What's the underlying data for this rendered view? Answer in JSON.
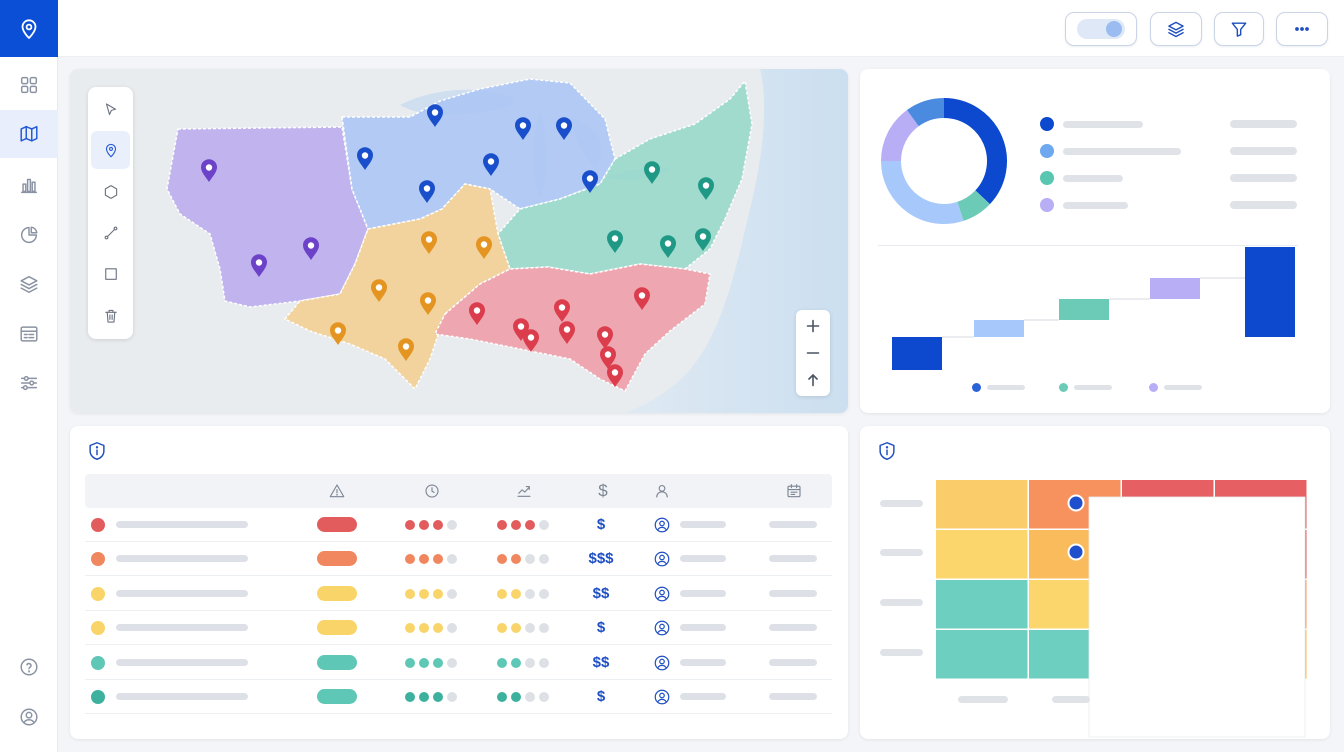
{
  "colors": {
    "brand": "#0a4fd6",
    "purple": "#b5a5ee",
    "blue": "#9dbcf0",
    "teal": "#87d3c2",
    "orange": "#f3cf93",
    "red": "#ee9ea8",
    "navy": "#0c49cf",
    "lightblue": "#a6c8fb",
    "mint": "#6ccbb7",
    "lavender": "#b7aef6"
  },
  "sidebar": {
    "brand_icon": "map-pin-icon",
    "items": [
      {
        "icon": "grid-icon",
        "active": false
      },
      {
        "icon": "map-icon",
        "active": true
      },
      {
        "icon": "bar-chart-icon",
        "active": false
      },
      {
        "icon": "pie-chart-icon",
        "active": false
      },
      {
        "icon": "layers-icon",
        "active": false
      },
      {
        "icon": "table-icon",
        "active": false
      },
      {
        "icon": "sliders-icon",
        "active": false
      }
    ],
    "bottom_items": [
      {
        "icon": "help-icon"
      },
      {
        "icon": "user-icon"
      }
    ]
  },
  "topbar": {
    "buttons": [
      "toggle",
      "layers-icon",
      "filter-icon",
      "more-icon"
    ]
  },
  "map": {
    "tools": [
      "cursor-icon",
      "pin-icon",
      "polygon-icon",
      "line-icon",
      "rectangle-icon",
      "trash-icon"
    ],
    "active_tool": "pin-icon",
    "zoom_controls": [
      "zoom-in-icon",
      "zoom-out-icon",
      "north-arrow-icon"
    ]
  },
  "chart_data": [
    {
      "type": "pie",
      "title": "",
      "donut": true,
      "slices": [
        {
          "value": 37,
          "color": "#0c49cf"
        },
        {
          "value": 8,
          "color": "#6ccbb7"
        },
        {
          "value": 30,
          "color": "#a6c8fb"
        },
        {
          "value": 15,
          "color": "#b7aef6"
        },
        {
          "value": 10,
          "color": "#4a8be0"
        }
      ],
      "legend_colors": [
        "#0c49cf",
        "#6ea8f0",
        "#58c6b0",
        "#b7aef6"
      ]
    },
    {
      "type": "bar",
      "title": "",
      "waterfall": true,
      "values": [
        -33,
        17,
        21,
        21,
        104
      ],
      "colors": [
        "#0c49cf",
        "#a6c8fb",
        "#6ccbb7",
        "#b7aef6",
        "#0c49cf"
      ],
      "ylim": [
        -40,
        105
      ],
      "legend_colors": [
        "#2a63d8",
        "#6ccbb7",
        "#b7aef6"
      ]
    }
  ],
  "table": {
    "header_icons": [
      "warning-icon",
      "clock-icon",
      "trend-icon",
      "dollar-icon",
      "person-icon",
      "calendar-icon"
    ],
    "header_dollar": "$",
    "rows": [
      {
        "color": "#e25c5e",
        "pill": "#e25c5e",
        "level": 3,
        "trend": 3,
        "cost": "$"
      },
      {
        "color": "#f0875e",
        "pill": "#f0875e",
        "level": 3,
        "trend": 2,
        "cost": "$$$"
      },
      {
        "color": "#f9d469",
        "pill": "#f9d469",
        "level": 3,
        "trend": 2,
        "cost": "$$"
      },
      {
        "color": "#f9d469",
        "pill": "#f9d469",
        "level": 3,
        "trend": 2,
        "cost": "$"
      },
      {
        "color": "#5fc7b6",
        "pill": "#5fc7b6",
        "level": 3,
        "trend": 2,
        "cost": "$$"
      },
      {
        "color": "#3db19d",
        "pill": "#5fc7b6",
        "level": 3,
        "trend": 2,
        "cost": "$"
      }
    ]
  },
  "matrix": {
    "cells": [
      [
        "#fbcc6a",
        "#f7925e",
        "#e66063",
        "#e66063"
      ],
      [
        "#fbd66d",
        "#f9bb5b",
        "#f39c5f",
        "#e66063"
      ],
      [
        "#6ccfbf",
        "#fbd66d",
        "#f9bb5b",
        "#f39c5f"
      ],
      [
        "#6ccfbf",
        "#6ccfbf",
        "#fbd66d",
        "#f9bb5b"
      ]
    ],
    "markers": 2
  }
}
